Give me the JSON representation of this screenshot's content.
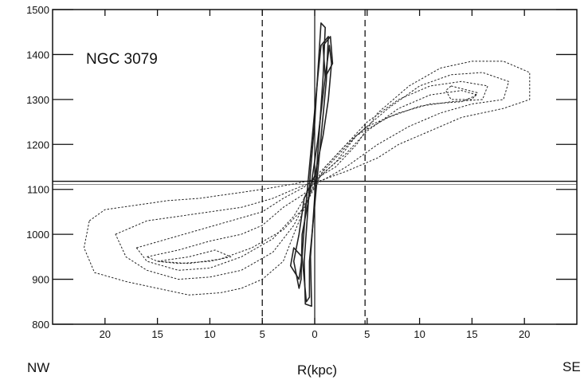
{
  "chart_data": {
    "type": "contour",
    "title": "NGC 3079",
    "xlabel": "R(kpc)",
    "ylabel": "",
    "x_side_labels": {
      "left": "NW",
      "right": "SE"
    },
    "xlim": [
      25,
      -25
    ],
    "ylim": [
      800,
      1500
    ],
    "xticks": [
      20,
      15,
      10,
      5,
      0,
      5,
      10,
      15,
      20
    ],
    "xtick_values": [
      20,
      15,
      10,
      5,
      0,
      -5,
      -10,
      -15,
      -20
    ],
    "yticks": [
      800,
      900,
      1000,
      1100,
      1200,
      1300,
      1400,
      1500
    ],
    "systemic_velocity": 1118,
    "dashed_vlines_x": [
      5,
      -4.8
    ],
    "center_line_x": 0,
    "grid": false,
    "legend": "none",
    "series": [
      {
        "line_style": "dotted",
        "contours": [
          {
            "points": [
              [
                21.5,
                1030
              ],
              [
                20,
                1055
              ],
              [
                17,
                1065
              ],
              [
                14,
                1075
              ],
              [
                11,
                1080
              ],
              [
                8,
                1090
              ],
              [
                5,
                1100
              ],
              [
                2,
                1112
              ],
              [
                0,
                1122
              ],
              [
                -2,
                1150
              ],
              [
                -4,
                1200
              ],
              [
                -6,
                1270
              ],
              [
                -9,
                1330
              ],
              [
                -12,
                1370
              ],
              [
                -15,
                1385
              ],
              [
                -18,
                1385
              ],
              [
                -20.5,
                1360
              ],
              [
                -20.5,
                1300
              ],
              [
                -18,
                1280
              ],
              [
                -14,
                1260
              ],
              [
                -11,
                1230
              ],
              [
                -8,
                1200
              ],
              [
                -6,
                1170
              ],
              [
                -3,
                1140
              ],
              [
                0,
                1115
              ],
              [
                2,
                1000
              ],
              [
                3,
                940
              ],
              [
                5,
                900
              ],
              [
                7,
                880
              ],
              [
                9,
                870
              ],
              [
                12,
                865
              ],
              [
                15,
                880
              ],
              [
                18,
                895
              ],
              [
                21,
                915
              ],
              [
                22,
                970
              ],
              [
                21.5,
                1030
              ]
            ]
          },
          {
            "points": [
              [
                19,
                1000
              ],
              [
                16,
                1030
              ],
              [
                13,
                1040
              ],
              [
                10,
                1050
              ],
              [
                7,
                1060
              ],
              [
                4,
                1080
              ],
              [
                2,
                1100
              ],
              [
                0,
                1118
              ],
              [
                -2,
                1160
              ],
              [
                -4,
                1220
              ],
              [
                -7,
                1280
              ],
              [
                -10,
                1330
              ],
              [
                -13,
                1355
              ],
              [
                -16,
                1360
              ],
              [
                -18.5,
                1340
              ],
              [
                -18,
                1300
              ],
              [
                -15,
                1290
              ],
              [
                -12,
                1270
              ],
              [
                -9,
                1240
              ],
              [
                -6,
                1200
              ],
              [
                -3,
                1150
              ],
              [
                0,
                1110
              ],
              [
                2,
                1020
              ],
              [
                4,
                960
              ],
              [
                7,
                920
              ],
              [
                10,
                905
              ],
              [
                13,
                900
              ],
              [
                16,
                920
              ],
              [
                18,
                950
              ],
              [
                19,
                1000
              ]
            ]
          },
          {
            "points": [
              [
                17,
                970
              ],
              [
                14,
                990
              ],
              [
                11,
                1010
              ],
              [
                8,
                1030
              ],
              [
                5,
                1050
              ],
              [
                3,
                1080
              ],
              [
                1,
                1105
              ],
              [
                -1,
                1150
              ],
              [
                -3,
                1200
              ],
              [
                -5,
                1250
              ],
              [
                -8,
                1300
              ],
              [
                -11,
                1330
              ],
              [
                -14,
                1340
              ],
              [
                -16.5,
                1330
              ],
              [
                -16,
                1300
              ],
              [
                -13,
                1295
              ],
              [
                -10,
                1285
              ],
              [
                -7,
                1260
              ],
              [
                -4,
                1220
              ],
              [
                -2,
                1170
              ],
              [
                0,
                1120
              ],
              [
                2,
                1040
              ],
              [
                4,
                990
              ],
              [
                7,
                950
              ],
              [
                10,
                925
              ],
              [
                13,
                920
              ],
              [
                16,
                940
              ],
              [
                17,
                970
              ]
            ]
          },
          {
            "points": [
              [
                16,
                950
              ],
              [
                13,
                965
              ],
              [
                10,
                985
              ],
              [
                7,
                1000
              ],
              [
                5,
                1020
              ],
              [
                3,
                1060
              ],
              [
                1,
                1090
              ],
              [
                -1,
                1140
              ],
              [
                -3,
                1180
              ],
              [
                -5,
                1230
              ],
              [
                -8,
                1280
              ],
              [
                -11,
                1310
              ],
              [
                -14,
                1320
              ],
              [
                -15.5,
                1310
              ],
              [
                -14,
                1295
              ],
              [
                -11,
                1290
              ],
              [
                -8,
                1270
              ],
              [
                -5,
                1240
              ],
              [
                -3,
                1200
              ],
              [
                -1,
                1150
              ],
              [
                1,
                1060
              ],
              [
                3,
                1010
              ],
              [
                6,
                970
              ],
              [
                9,
                945
              ],
              [
                12,
                935
              ],
              [
                15,
                940
              ],
              [
                16,
                950
              ]
            ]
          },
          {
            "points": [
              [
                15,
                940
              ],
              [
                12,
                950
              ],
              [
                9.5,
                965
              ],
              [
                8,
                950
              ],
              [
                10,
                940
              ],
              [
                13,
                935
              ],
              [
                15,
                940
              ]
            ]
          },
          {
            "points": [
              [
                -13,
                1330
              ],
              [
                -15.5,
                1315
              ],
              [
                -15,
                1300
              ],
              [
                -13,
                1300
              ],
              [
                -12.5,
                1320
              ],
              [
                -13,
                1330
              ]
            ]
          }
        ]
      },
      {
        "line_style": "solid",
        "contours": [
          {
            "points": [
              [
                0.3,
                840
              ],
              [
                0.4,
                950
              ],
              [
                0.1,
                1050
              ],
              [
                -0.2,
                1150
              ],
              [
                -0.5,
                1250
              ],
              [
                -0.8,
                1350
              ],
              [
                -1,
                1460
              ],
              [
                -0.6,
                1470
              ],
              [
                -0.3,
                1360
              ],
              [
                0,
                1250
              ],
              [
                0.4,
                1140
              ],
              [
                0.7,
                1040
              ],
              [
                1,
                940
              ],
              [
                0.9,
                845
              ],
              [
                0.3,
                840
              ]
            ]
          },
          {
            "points": [
              [
                0.8,
                850
              ],
              [
                1.2,
                950
              ],
              [
                0.9,
                1050
              ],
              [
                0.5,
                1150
              ],
              [
                0.1,
                1250
              ],
              [
                -0.3,
                1350
              ],
              [
                -0.6,
                1420
              ],
              [
                -1.3,
                1440
              ],
              [
                -1.1,
                1340
              ],
              [
                -0.7,
                1240
              ],
              [
                -0.3,
                1140
              ],
              [
                0.1,
                1040
              ],
              [
                0.5,
                940
              ],
              [
                0.5,
                860
              ],
              [
                0.8,
                850
              ]
            ]
          },
          {
            "points": [
              [
                1.5,
                880
              ],
              [
                2,
                940
              ],
              [
                1.5,
                1000
              ],
              [
                1,
                1080
              ],
              [
                0,
                1130
              ],
              [
                -0.8,
                1220
              ],
              [
                -1.3,
                1300
              ],
              [
                -1.6,
                1380
              ],
              [
                -1.4,
                1420
              ],
              [
                -0.9,
                1330
              ],
              [
                -0.3,
                1210
              ],
              [
                0.4,
                1100
              ],
              [
                1.2,
                1000
              ],
              [
                1.3,
                900
              ],
              [
                1.5,
                880
              ]
            ]
          },
          {
            "points": [
              [
                -1,
                1350
              ],
              [
                -1.7,
                1380
              ],
              [
                -1.5,
                1440
              ],
              [
                -0.8,
                1420
              ],
              [
                -1,
                1350
              ]
            ]
          },
          {
            "points": [
              [
                1.5,
                900
              ],
              [
                2.3,
                930
              ],
              [
                2,
                970
              ],
              [
                1.2,
                950
              ],
              [
                1.5,
                900
              ]
            ]
          }
        ]
      }
    ]
  }
}
